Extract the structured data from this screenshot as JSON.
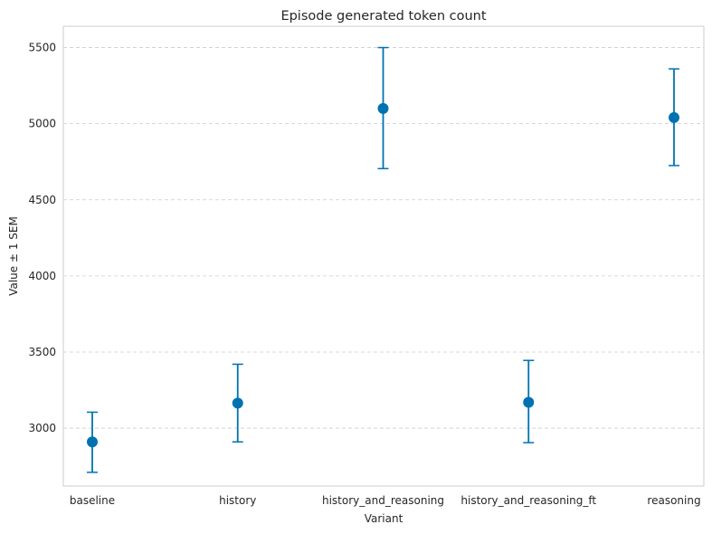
{
  "chart_data": {
    "type": "errorbar",
    "title": "Episode generated token count",
    "xlabel": "Variant",
    "ylabel": "Value ± 1 SEM",
    "categories": [
      "baseline",
      "history",
      "history_and_reasoning",
      "history_and_reasoning_ft",
      "reasoning"
    ],
    "values": [
      2910,
      3165,
      5100,
      3170,
      5040
    ],
    "error_low": [
      2710,
      2910,
      4705,
      2905,
      4725
    ],
    "error_high": [
      3105,
      3420,
      5500,
      3445,
      5360
    ],
    "ylim": [
      2620,
      5640
    ],
    "yticks": [
      3000,
      3500,
      4000,
      4500,
      5000,
      5500
    ],
    "grid": "horizontal dashed",
    "color": "#0072b2"
  }
}
